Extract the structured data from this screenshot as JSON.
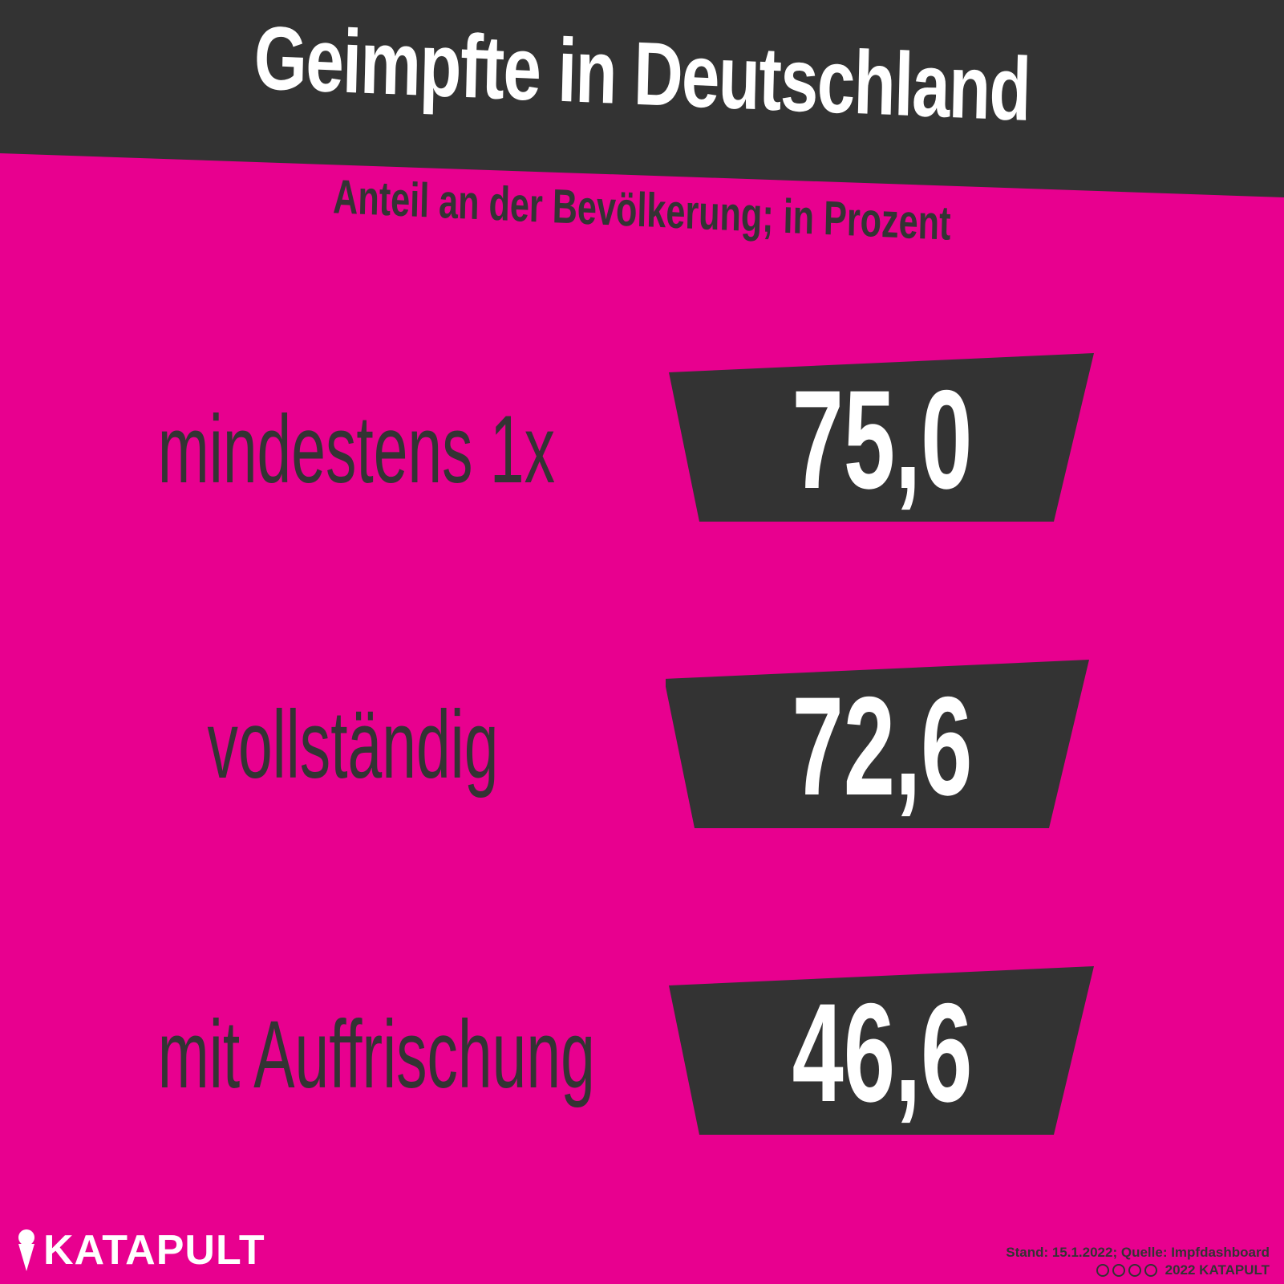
{
  "title": "Geimpfte in Deutschland",
  "subtitle": "Anteil an der Bevölkerung; in Prozent",
  "colors": {
    "background": "#e8008f",
    "dark": "#333333",
    "text_light": "#ffffff"
  },
  "chart_data": {
    "type": "table",
    "title": "Geimpfte in Deutschland",
    "subtitle": "Anteil an der Bevölkerung; in Prozent",
    "rows": [
      {
        "label": "mindestens 1x",
        "value": 75.0,
        "display": "75,0"
      },
      {
        "label": "vollständig",
        "value": 72.6,
        "display": "72,6"
      },
      {
        "label": "mit Auffrischung",
        "value": 46.6,
        "display": "46,6"
      }
    ]
  },
  "footer": {
    "source": "Stand: 15.1.2022; Quelle: Impfdashboard",
    "license": "2022 KATAPULT",
    "license_icons": [
      "cc-icon",
      "by-icon",
      "nc-icon",
      "nd-icon"
    ]
  },
  "logo": {
    "text": "KATAPULT",
    "icon": "ice-cream-icon"
  }
}
